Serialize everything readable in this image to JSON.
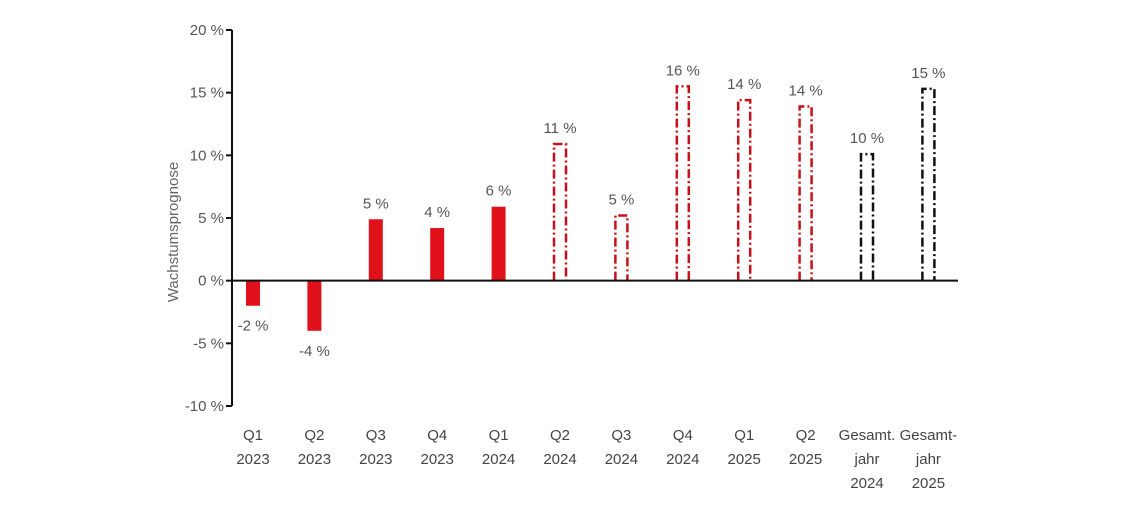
{
  "chart_data": {
    "type": "bar",
    "title": "",
    "xlabel": "",
    "ylabel": "Wachstumsprognose",
    "ylim": [
      -10,
      20
    ],
    "yticks": [
      20,
      15,
      10,
      5,
      0,
      -5,
      -10
    ],
    "ytick_labels": [
      "20 %",
      "15 %",
      "10 %",
      "5 %",
      "0 %",
      "-5 %",
      "-10 %"
    ],
    "grid": false,
    "legend": "none",
    "categories": [
      [
        "Q1",
        "2023"
      ],
      [
        "Q2",
        "2023"
      ],
      [
        "Q3",
        "2023"
      ],
      [
        "Q4",
        "2023"
      ],
      [
        "Q1",
        "2024"
      ],
      [
        "Q2",
        "2024"
      ],
      [
        "Q3",
        "2024"
      ],
      [
        "Q4",
        "2024"
      ],
      [
        "Q1",
        "2025"
      ],
      [
        "Q2",
        "2025"
      ],
      [
        "Gesamt.",
        "jahr",
        "2024"
      ],
      [
        "Gesamt-",
        "jahr",
        "2025"
      ]
    ],
    "values": [
      -2,
      -4,
      4.9,
      4.2,
      5.9,
      10.9,
      5.2,
      15.5,
      14.4,
      13.9,
      10.1,
      15.3
    ],
    "data_labels": [
      "-2 %",
      "-4 %",
      "5 %",
      "4 %",
      "6 %",
      "11 %",
      "5 %",
      "16 %",
      "14 %",
      "14 %",
      "10 %",
      "15 %"
    ],
    "styles": [
      "actual",
      "actual",
      "actual",
      "actual",
      "actual",
      "forecast",
      "forecast",
      "forecast",
      "forecast",
      "forecast",
      "forecast-annual",
      "forecast-annual"
    ],
    "colors": {
      "actual": "#e0111b",
      "forecast": "#c8101a",
      "forecast_annual": "#111111",
      "axis": "#111111",
      "text": "#555555"
    }
  }
}
